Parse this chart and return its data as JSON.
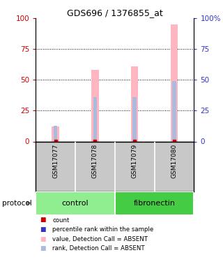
{
  "title": "GDS696 / 1376855_at",
  "samples": [
    "GSM17077",
    "GSM17078",
    "GSM17079",
    "GSM17080"
  ],
  "bar_color_value": "#FFB6C1",
  "bar_color_rank": "#AABBDD",
  "count_color": "#CC0000",
  "rank_color": "#3333CC",
  "value_absent": [
    12,
    58,
    61,
    95
  ],
  "rank_absent": [
    13,
    36,
    36,
    49
  ],
  "ylim": [
    0,
    100
  ],
  "yticks": [
    0,
    25,
    50,
    75,
    100
  ],
  "left_axis_color": "#CC0000",
  "right_axis_color": "#3333CC",
  "sample_bg": "#C8C8C8",
  "control_color": "#90EE90",
  "fibronectin_color": "#44CC44",
  "background_color": "#ffffff",
  "legend_items": [
    {
      "color": "#CC0000",
      "label": "count"
    },
    {
      "color": "#3333CC",
      "label": "percentile rank within the sample"
    },
    {
      "color": "#FFB6C1",
      "label": "value, Detection Call = ABSENT"
    },
    {
      "color": "#AABBDD",
      "label": "rank, Detection Call = ABSENT"
    }
  ],
  "protocol_label": "protocol"
}
